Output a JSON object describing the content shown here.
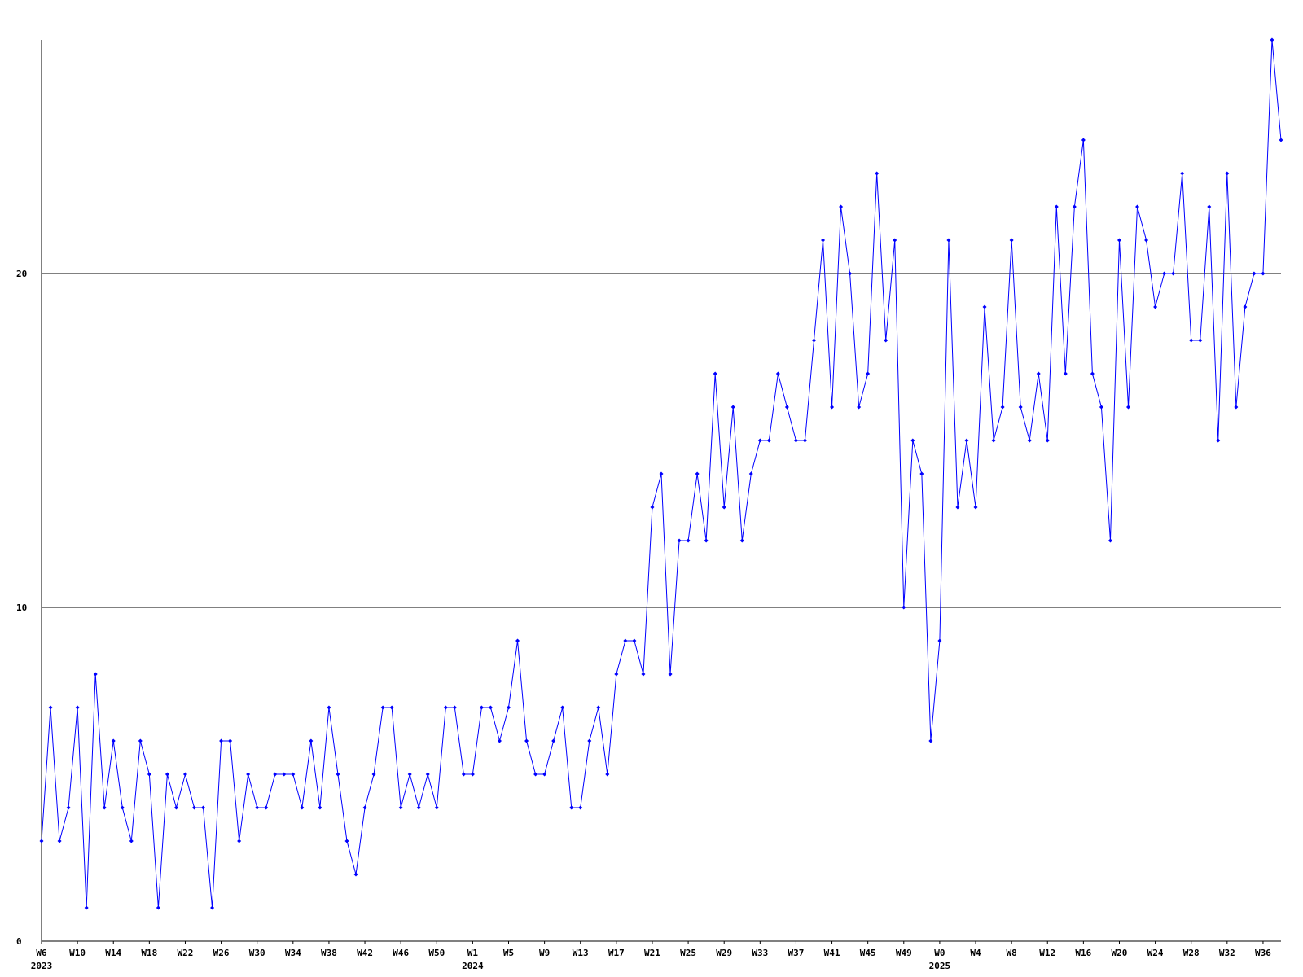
{
  "chart_data": {
    "type": "line",
    "categories": [
      "W6",
      null,
      null,
      null,
      "W10",
      null,
      null,
      null,
      "W14",
      null,
      null,
      null,
      "W18",
      null,
      null,
      null,
      "W22",
      null,
      null,
      null,
      "W26",
      null,
      null,
      null,
      "W30",
      null,
      null,
      null,
      "W34",
      null,
      null,
      null,
      "W38",
      null,
      null,
      null,
      "W42",
      null,
      null,
      null,
      "W46",
      null,
      null,
      null,
      "W50",
      null,
      null,
      null,
      "W1",
      null,
      null,
      null,
      "W5",
      null,
      null,
      null,
      "W9",
      null,
      null,
      null,
      "W13",
      null,
      null,
      null,
      "W17",
      null,
      null,
      null,
      "W21",
      null,
      null,
      null,
      "W25",
      null,
      null,
      null,
      "W29",
      null,
      null,
      null,
      "W33",
      null,
      null,
      null,
      "W37",
      null,
      null,
      null,
      "W41",
      null,
      null,
      null,
      "W45",
      null,
      null,
      null,
      "W49",
      null,
      null,
      null,
      "W0",
      null,
      null,
      null,
      "W4",
      null,
      null,
      null,
      "W8",
      null,
      null,
      null,
      "W12",
      null,
      null,
      null,
      "W16",
      null,
      null,
      null,
      "W20",
      null,
      null,
      null,
      "W24",
      null,
      null,
      null,
      "W28",
      null,
      null,
      null,
      "W32",
      null,
      null,
      null,
      "W36",
      null,
      null
    ],
    "category_years": [
      "2023",
      null,
      null,
      null,
      null,
      null,
      null,
      null,
      null,
      null,
      null,
      null,
      null,
      null,
      null,
      null,
      null,
      null,
      null,
      null,
      null,
      null,
      null,
      null,
      null,
      null,
      null,
      null,
      null,
      null,
      null,
      null,
      null,
      null,
      null,
      null,
      null,
      null,
      null,
      null,
      null,
      null,
      null,
      null,
      null,
      null,
      null,
      null,
      "2024",
      null,
      null,
      null,
      null,
      null,
      null,
      null,
      null,
      null,
      null,
      null,
      null,
      null,
      null,
      null,
      null,
      null,
      null,
      null,
      null,
      null,
      null,
      null,
      null,
      null,
      null,
      null,
      null,
      null,
      null,
      null,
      null,
      null,
      null,
      null,
      null,
      null,
      null,
      null,
      null,
      null,
      null,
      null,
      null,
      null,
      null,
      null,
      null,
      null,
      null,
      null,
      "2025",
      null,
      null,
      null,
      null,
      null,
      null,
      null,
      null,
      null,
      null,
      null,
      null,
      null,
      null,
      null,
      null,
      null,
      null,
      null,
      null,
      null,
      null,
      null,
      null,
      null,
      null,
      null,
      null,
      null,
      null,
      null,
      null,
      null,
      null,
      null,
      null,
      null,
      null
    ],
    "series": [
      {
        "color": "#0000ff",
        "values": [
          3,
          7,
          3,
          4,
          7,
          1,
          8,
          4,
          6,
          4,
          3,
          6,
          5,
          1,
          5,
          4,
          5,
          4,
          4,
          1,
          6,
          6,
          3,
          5,
          4,
          4,
          5,
          5,
          5,
          4,
          6,
          4,
          7,
          5,
          3,
          2,
          4,
          5,
          7,
          7,
          4,
          5,
          4,
          5,
          4,
          7,
          7,
          5,
          5,
          7,
          7,
          6,
          7,
          9,
          6,
          5,
          5,
          6,
          7,
          4,
          4,
          6,
          7,
          5,
          8,
          9,
          9,
          8,
          13,
          14,
          8,
          12,
          12,
          14,
          12,
          17,
          13,
          16,
          12,
          14,
          15,
          15,
          17,
          16,
          15,
          15,
          18,
          21,
          16,
          22,
          20,
          16,
          17,
          23,
          18,
          21,
          10,
          15,
          14,
          6,
          9,
          21,
          13,
          15,
          13,
          19,
          15,
          16,
          21,
          16,
          15,
          17,
          15,
          22,
          17,
          22,
          24,
          17,
          16,
          12,
          21,
          16,
          22,
          21,
          19,
          20,
          20,
          23,
          18,
          18,
          22,
          15,
          23,
          16,
          19,
          20,
          20,
          27,
          24
        ]
      }
    ],
    "ylim": [
      0,
      27
    ],
    "yticks": [
      0,
      10,
      20
    ],
    "grid": true
  }
}
